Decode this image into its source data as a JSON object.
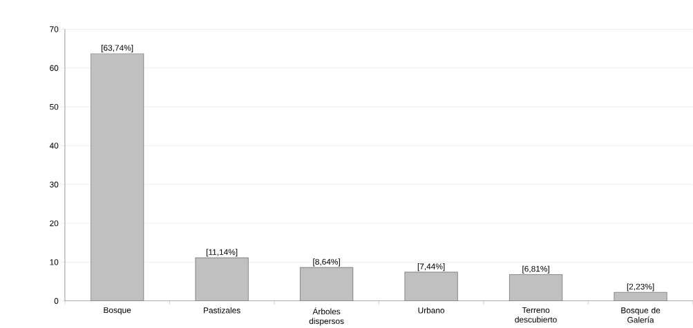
{
  "chart_data": {
    "type": "bar",
    "categories": [
      "Bosque",
      "Pastizales",
      "Árboles dispersos",
      "Urbano",
      "Terreno descubierto",
      "Bosque de Galería"
    ],
    "values": [
      63.74,
      11.14,
      8.64,
      7.44,
      6.81,
      2.23
    ],
    "value_labels": [
      "[63,74%]",
      "[11,14%]",
      "[8,64%]",
      "[7,44%]",
      "[6,81%]",
      "[2,23%]"
    ],
    "color": "#c0c0c0",
    "ylim": [
      0,
      70
    ],
    "yticks": [
      0,
      10,
      20,
      30,
      40,
      50,
      60,
      70
    ],
    "grid": "y"
  }
}
